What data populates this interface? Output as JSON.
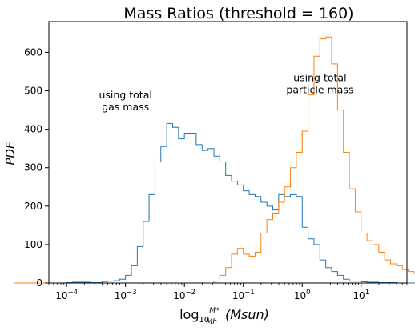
{
  "chart_data": {
    "type": "histogram",
    "title": "Mass Ratios (threshold = 160)",
    "xlabel": "log10 M*/Mh  (Msun)",
    "xlabel_parts": {
      "log": "log",
      "sub10": "10",
      "num": "M*",
      "den": "Mh",
      "unit": "(Msun)"
    },
    "ylabel": "PDF",
    "xscale": "log",
    "xlim": [
      5e-05,
      60
    ],
    "ylim": [
      0,
      680
    ],
    "xticks": [
      0.0001,
      0.001,
      0.01,
      0.1,
      1,
      10
    ],
    "xtick_labels": [
      {
        "base": "10",
        "exp": "−4"
      },
      {
        "base": "10",
        "exp": "−3"
      },
      {
        "base": "10",
        "exp": "−2"
      },
      {
        "base": "10",
        "exp": "−1"
      },
      {
        "base": "10",
        "exp": "0"
      },
      {
        "base": "10",
        "exp": "1"
      }
    ],
    "yticks": [
      0,
      100,
      200,
      300,
      400,
      500,
      600
    ],
    "ytick_labels": [
      "0",
      "100",
      "200",
      "300",
      "400",
      "500",
      "600"
    ],
    "bin_log_start": -4.9,
    "bin_log_width": 0.1,
    "series": [
      {
        "color": "#1f77b4",
        "values": [
          0,
          0,
          0,
          0,
          0,
          0,
          0,
          0,
          0,
          1,
          2,
          2,
          2,
          1,
          1,
          4,
          5,
          6,
          10,
          20,
          45,
          95,
          160,
          230,
          315,
          355,
          415,
          405,
          375,
          390,
          390,
          360,
          345,
          350,
          330,
          315,
          280,
          265,
          255,
          240,
          230,
          225,
          210,
          200,
          190,
          230,
          225,
          230,
          225,
          145,
          115,
          100,
          60,
          40,
          30,
          20,
          10,
          5,
          5,
          3,
          2,
          2,
          1,
          1,
          1,
          0,
          0,
          0,
          0,
          0,
          0,
          0,
          0,
          0,
          0,
          0,
          0,
          0,
          0,
          0
        ]
      },
      {
        "color": "#ff7f0e",
        "values": [
          0,
          0,
          0,
          0,
          0,
          0,
          0,
          0,
          0,
          0,
          0,
          0,
          0,
          0,
          0,
          0,
          0,
          0,
          0,
          0,
          0,
          0,
          0,
          0,
          0,
          0,
          0,
          0,
          0,
          0,
          0,
          0,
          0,
          0,
          5,
          20,
          40,
          75,
          90,
          75,
          70,
          80,
          130,
          165,
          180,
          210,
          250,
          300,
          340,
          395,
          490,
          590,
          635,
          640,
          570,
          450,
          340,
          245,
          185,
          130,
          110,
          100,
          80,
          60,
          50,
          45,
          35,
          30,
          25,
          20,
          15,
          10,
          5,
          5,
          3,
          3,
          2,
          1,
          0,
          0
        ]
      }
    ],
    "annotations": [
      {
        "lines": [
          "using total",
          "gas mass"
        ],
        "x": 0.001,
        "y": 480
      },
      {
        "lines": [
          "using total",
          "particle mass"
        ],
        "x": 2.0,
        "y": 525
      }
    ],
    "grid": false,
    "legend": "none"
  }
}
